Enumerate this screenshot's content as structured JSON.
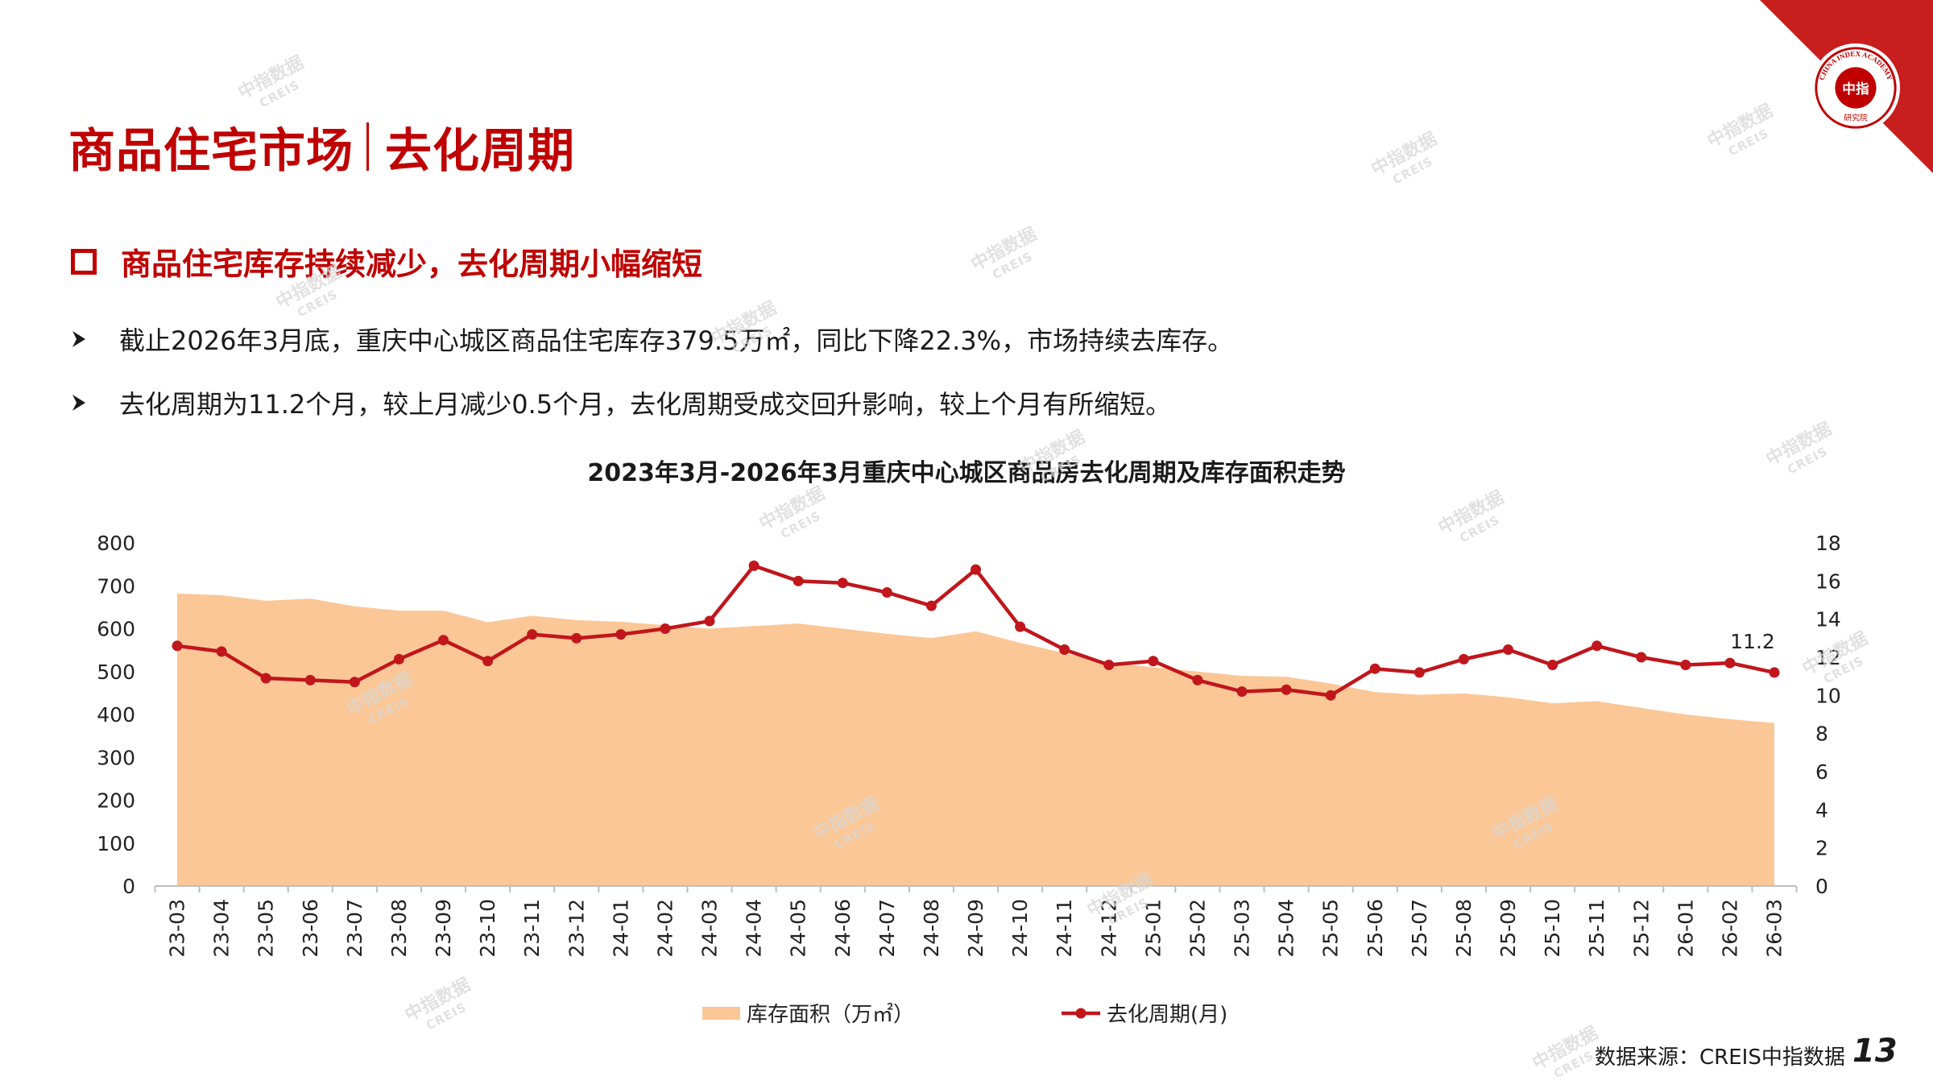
{
  "header": {
    "title_left": "商品住宅市场",
    "title_right": "去化周期",
    "logo_text_cn": "中指",
    "logo_text_en": "CHINA INDEX ACADEMY",
    "logo_text_bottom": "研究院"
  },
  "section": {
    "heading": "商品住宅库存持续减少，去化周期小幅缩短",
    "bullets": [
      "截止2026年3月底，重庆中心城区商品住宅库存379.5万㎡，同比下降22.3%，市场持续去库存。",
      "去化周期为11.2个月，较上月减少0.5个月，去化周期受成交回升影响，较上个月有所缩短。"
    ]
  },
  "watermark": {
    "cn": "中指数据",
    "en": "CREIS"
  },
  "colors": {
    "accent": "#c00000",
    "area": "#fbc796",
    "line": "#c0161c"
  },
  "chart_data": {
    "type": "area+line",
    "title": "2023年3月-2026年3月重庆中心城区商品房去化周期及库存面积走势",
    "categories": [
      "23-03",
      "23-04",
      "23-05",
      "23-06",
      "23-07",
      "23-08",
      "23-09",
      "23-10",
      "23-11",
      "23-12",
      "24-01",
      "24-02",
      "24-03",
      "24-04",
      "24-05",
      "24-06",
      "24-07",
      "24-08",
      "24-09",
      "24-10",
      "24-11",
      "24-12",
      "25-01",
      "25-02",
      "25-03",
      "25-04",
      "25-05",
      "25-06",
      "25-07",
      "25-08",
      "25-09",
      "25-10",
      "25-11",
      "25-12",
      "26-01",
      "26-02",
      "26-03"
    ],
    "series": [
      {
        "name": "库存面积（万㎡）",
        "type": "area",
        "axis": "left",
        "values": [
          682,
          678,
          665,
          670,
          652,
          642,
          642,
          615,
          630,
          620,
          616,
          608,
          600,
          606,
          612,
          600,
          588,
          578,
          594,
          567,
          543,
          521,
          510,
          500,
          490,
          488,
          472,
          452,
          446,
          449,
          440,
          426,
          431,
          415,
          400,
          389,
          380
        ]
      },
      {
        "name": "去化周期(月)",
        "type": "line",
        "axis": "right",
        "values": [
          12.6,
          12.3,
          10.9,
          10.8,
          10.7,
          11.9,
          12.9,
          11.8,
          13.2,
          13.0,
          13.2,
          13.5,
          13.9,
          16.8,
          16.0,
          15.9,
          15.4,
          14.7,
          16.6,
          13.6,
          12.4,
          11.6,
          11.8,
          10.8,
          10.2,
          10.3,
          10.0,
          11.4,
          11.2,
          11.9,
          12.4,
          11.6,
          12.6,
          12.0,
          11.6,
          11.7,
          11.2
        ]
      }
    ],
    "annotations": [
      {
        "category": "26-03",
        "text": "11.2"
      }
    ],
    "y_left": {
      "min": 0,
      "max": 800,
      "ticks": [
        0,
        100,
        200,
        300,
        400,
        500,
        600,
        700,
        800
      ]
    },
    "y_right": {
      "min": 0,
      "max": 18,
      "ticks": [
        0,
        2,
        4,
        6,
        8,
        10,
        12,
        14,
        16,
        18
      ]
    },
    "legend": {
      "position": "bottom",
      "area_label": "库存面积（万㎡）",
      "line_label": "去化周期(月)"
    }
  },
  "footer": {
    "source": "数据来源：CREIS中指数据",
    "page": "13"
  }
}
